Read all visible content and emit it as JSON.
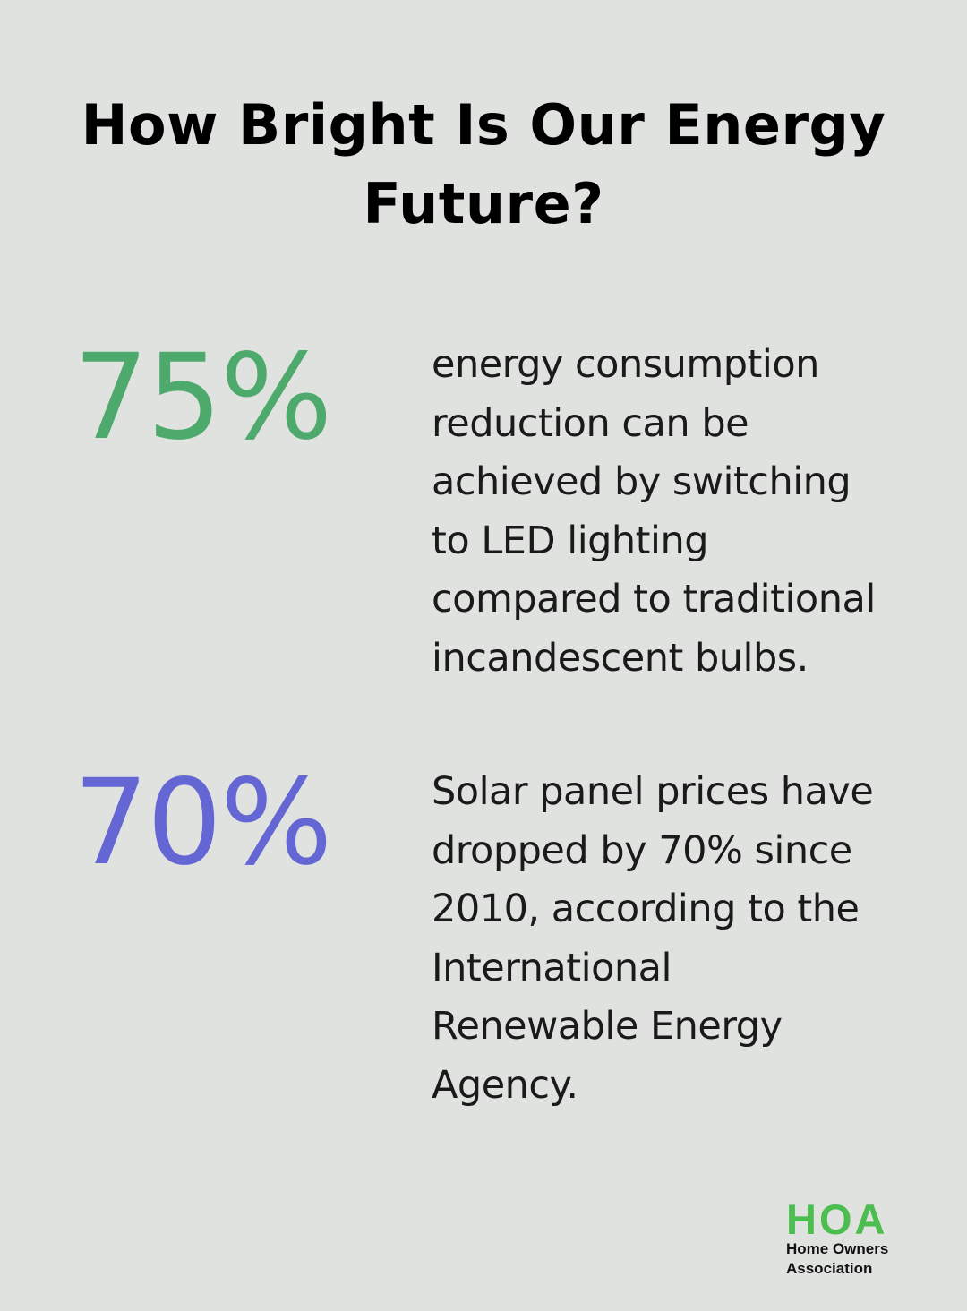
{
  "title": {
    "line1": "How Bright Is Our Energy",
    "line2": "Future?"
  },
  "stats": [
    {
      "value": "75%",
      "color": "#4ea96c",
      "description_lines": [
        "energy consumption",
        "reduction can be",
        "achieved by switching",
        "to LED lighting",
        "compared to traditional",
        "incandescent bulbs."
      ]
    },
    {
      "value": "70%",
      "color": "#6466d3",
      "description_lines": [
        "Solar panel prices have",
        "dropped by 70% since",
        "2010, according to the",
        "International",
        "Renewable Energy",
        "Agency."
      ]
    }
  ],
  "logo": {
    "mark": "HOA",
    "line1": "Home Owners",
    "line2": "Association",
    "color": "#4cbd4f"
  }
}
